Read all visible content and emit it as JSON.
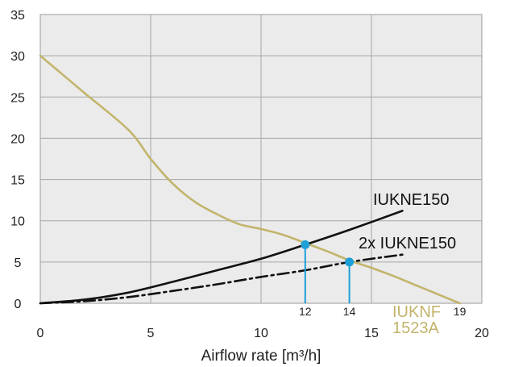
{
  "chart_data": {
    "type": "line",
    "title": "",
    "xlabel": "Airflow rate [m³/h]",
    "ylabel": "",
    "xlim": [
      0,
      20
    ],
    "ylim": [
      0,
      35
    ],
    "grid": true,
    "x_ticks": [
      "0",
      "5",
      "10",
      "15",
      "20"
    ],
    "y_ticks": [
      "0",
      "5",
      "10",
      "15",
      "20",
      "25",
      "30",
      "35"
    ],
    "colors": {
      "plot_background": "#ebebeb",
      "grid": "#a6a6a6",
      "fan_curve": "#c2b46c",
      "system_curve": "#111111",
      "operating_point": "#1d9fd8"
    },
    "series": [
      {
        "name": "IUKNF 1523A",
        "style": "solid",
        "x": [
          0,
          2,
          4,
          5,
          6,
          7,
          8,
          9,
          10,
          11,
          12,
          13,
          14,
          15,
          16,
          17,
          18,
          19
        ],
        "y": [
          30,
          25.5,
          21,
          17.5,
          14.5,
          12.3,
          10.8,
          9.6,
          9.0,
          8.3,
          7.3,
          6.3,
          5.2,
          4.3,
          3.3,
          2.2,
          1.1,
          0
        ]
      },
      {
        "name": "IUKNE150",
        "style": "solid",
        "x": [
          0,
          2,
          4,
          6,
          8,
          10,
          12,
          14,
          16.4
        ],
        "y": [
          0,
          0.45,
          1.3,
          2.6,
          4.0,
          5.4,
          7.1,
          8.9,
          11.2
        ]
      },
      {
        "name": "2x IUKNE150",
        "style": "dashdot",
        "x": [
          0,
          2,
          4,
          6,
          8,
          10,
          12,
          14,
          16.4
        ],
        "y": [
          0,
          0.25,
          0.75,
          1.5,
          2.3,
          3.2,
          4.0,
          5.0,
          5.9
        ]
      }
    ],
    "points": [
      {
        "x": 12,
        "y": 7.1,
        "label": "12"
      },
      {
        "x": 14,
        "y": 5.0,
        "label": "14"
      }
    ],
    "annotations": {
      "fan_end_label": "19"
    }
  }
}
